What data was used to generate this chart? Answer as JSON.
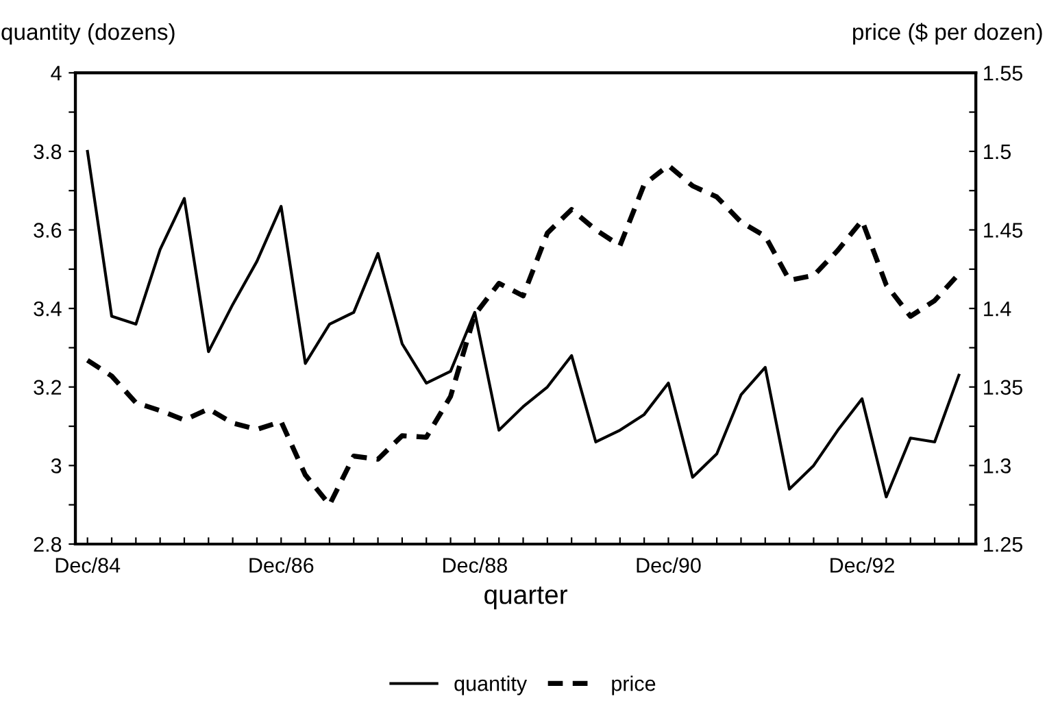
{
  "chart_data": {
    "type": "line",
    "xlabel": "quarter",
    "ylabel": "quantity (dozens)",
    "y2label": "price ($ per dozen)",
    "categories": [
      "Dec/84",
      null,
      null,
      null,
      null,
      null,
      null,
      null,
      "Dec/86",
      null,
      null,
      null,
      null,
      null,
      null,
      null,
      "Dec/88",
      null,
      null,
      null,
      null,
      null,
      null,
      null,
      "Dec/90",
      null,
      null,
      null,
      null,
      null,
      null,
      null,
      "Dec/92",
      null,
      null,
      null,
      null
    ],
    "series": [
      {
        "name": "quantity",
        "color": "#000000",
        "line_style": "solid",
        "values": [
          3.8,
          3.38,
          3.36,
          3.55,
          3.68,
          3.29,
          3.41,
          3.52,
          3.66,
          3.26,
          3.36,
          3.39,
          3.54,
          3.31,
          3.21,
          3.24,
          3.39,
          3.09,
          3.15,
          3.2,
          3.28,
          3.06,
          3.09,
          3.13,
          3.21,
          2.97,
          3.03,
          3.18,
          3.25,
          2.94,
          3.0,
          3.09,
          3.17,
          2.92,
          3.07,
          3.06,
          3.23
        ]
      },
      {
        "name": "price",
        "color": "#000000",
        "line_style": "dashed",
        "axis": "y2",
        "values": [
          1.367,
          1.357,
          1.34,
          1.335,
          1.329,
          1.336,
          1.327,
          1.323,
          1.328,
          1.294,
          1.275,
          1.306,
          1.304,
          1.319,
          1.318,
          1.344,
          1.396,
          1.416,
          1.408,
          1.448,
          1.463,
          1.45,
          1.44,
          1.479,
          1.491,
          1.478,
          1.471,
          1.455,
          1.446,
          1.418,
          1.421,
          1.437,
          1.456,
          1.415,
          1.395,
          1.405,
          1.422
        ]
      }
    ],
    "ylim": [
      2.8,
      4
    ],
    "yticks": [
      {
        "value": 2.8,
        "label": "2.8"
      },
      {
        "value": 2.9,
        "label": null
      },
      {
        "value": 3.0,
        "label": "3"
      },
      {
        "value": 3.1,
        "label": null
      },
      {
        "value": 3.2,
        "label": "3.2"
      },
      {
        "value": 3.3,
        "label": null
      },
      {
        "value": 3.4,
        "label": "3.4"
      },
      {
        "value": 3.5,
        "label": null
      },
      {
        "value": 3.6,
        "label": "3.6"
      },
      {
        "value": 3.7,
        "label": null
      },
      {
        "value": 3.8,
        "label": "3.8"
      },
      {
        "value": 3.9,
        "label": null
      },
      {
        "value": 4.0,
        "label": "4"
      }
    ],
    "y2lim": [
      1.25,
      1.55
    ],
    "y2ticks": [
      1.25,
      {
        "value": 1.275,
        "label": null
      },
      1.3,
      {
        "value": 1.325,
        "label": null
      },
      1.35,
      {
        "value": 1.375,
        "label": null
      },
      1.4,
      {
        "value": 1.425,
        "label": null
      },
      1.45,
      {
        "value": 1.475,
        "label": null
      },
      1.5,
      {
        "value": 1.525,
        "label": null
      },
      1.55
    ],
    "grid": false,
    "legend": "bottom",
    "marker": "none"
  }
}
